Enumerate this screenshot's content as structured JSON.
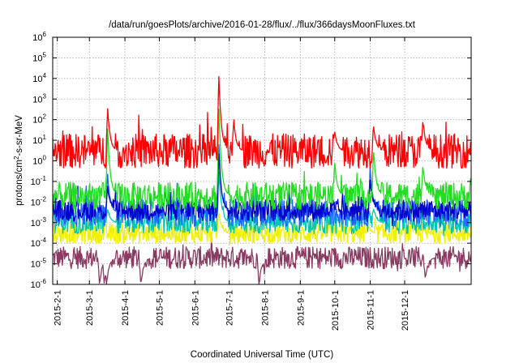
{
  "chart_data": {
    "type": "line",
    "title": "/data/run/goesPlots/archive/2016-01-28/flux/../flux/366daysMoonFluxes.txt",
    "xlabel": "Coordinated Universal Time (UTC)",
    "ylabel": "protons/cm2-s-sr-MeV",
    "ylabel_parts": {
      "pre": "protons/cm",
      "sup": "2",
      "post": "-s-sr-MeV"
    },
    "y_scale": "log",
    "ylim": [
      1e-06,
      1000000.0
    ],
    "xlim": [
      "2015-01-28",
      "2016-01-28"
    ],
    "grid": true,
    "y_ticks": [
      {
        "base": "10",
        "exp": "-6"
      },
      {
        "base": "10",
        "exp": "-5"
      },
      {
        "base": "10",
        "exp": "-4"
      },
      {
        "base": "10",
        "exp": "-3"
      },
      {
        "base": "10",
        "exp": "-2"
      },
      {
        "base": "10",
        "exp": "-1"
      },
      {
        "base": "10",
        "exp": "0"
      },
      {
        "base": "10",
        "exp": "1"
      },
      {
        "base": "10",
        "exp": "2"
      },
      {
        "base": "10",
        "exp": "3"
      },
      {
        "base": "10",
        "exp": "4"
      },
      {
        "base": "10",
        "exp": "5"
      },
      {
        "base": "10",
        "exp": "6"
      }
    ],
    "x_ticks": [
      {
        "date": "2015-02-01",
        "label": "2015-2-1"
      },
      {
        "date": "2015-03-01",
        "label": "2015-3-1"
      },
      {
        "date": "2015-04-01",
        "label": "2015-4-1"
      },
      {
        "date": "2015-05-01",
        "label": "2015-5-1"
      },
      {
        "date": "2015-06-01",
        "label": "2015-6-1"
      },
      {
        "date": "2015-07-01",
        "label": "2015-7-1"
      },
      {
        "date": "2015-08-01",
        "label": "2015-8-1"
      },
      {
        "date": "2015-09-01",
        "label": "2015-9-1"
      },
      {
        "date": "2015-10-01",
        "label": "2015-10-1"
      },
      {
        "date": "2015-11-01",
        "label": "2015-11-1"
      },
      {
        "date": "2015-12-01",
        "label": "2015-12-1"
      }
    ],
    "series": [
      {
        "color": "#8b3a62",
        "base": 2e-05,
        "noise": 0.18,
        "events": [
          {
            "date": "2015-03-10",
            "peak": 1e-06
          },
          {
            "date": "2015-03-14",
            "peak": 1e-06
          },
          {
            "date": "2015-03-16",
            "peak": 1e-06
          },
          {
            "date": "2015-04-15",
            "peak": 1e-06
          },
          {
            "date": "2015-07-27",
            "peak": 1e-06
          },
          {
            "date": "2015-12-19",
            "peak": 2e-06
          }
        ]
      },
      {
        "color": "#f0f000",
        "base": 0.0003,
        "noise": 0.16,
        "events": [
          {
            "date": "2015-06-22",
            "peak": 0.003
          },
          {
            "date": "2015-10-30",
            "peak": 0.0008
          }
        ]
      },
      {
        "color": "#00c8b0",
        "base": 0.001,
        "noise": 0.18,
        "events": [
          {
            "date": "2015-06-22",
            "peak": 0.3
          },
          {
            "date": "2015-03-17",
            "peak": 0.005
          },
          {
            "date": "2015-11-04",
            "peak": 0.005
          }
        ]
      },
      {
        "color": "#1e64ff",
        "base": 0.003,
        "noise": 0.22,
        "events": [
          {
            "date": "2015-06-22",
            "peak": 5
          },
          {
            "date": "2015-03-17",
            "peak": 0.2
          },
          {
            "date": "2015-05-06",
            "peak": 0.03
          },
          {
            "date": "2015-11-01",
            "peak": 0.5
          }
        ]
      },
      {
        "color": "#0000cc",
        "base": 0.004,
        "noise": 0.18,
        "events": [
          {
            "date": "2015-06-22",
            "peak": 2
          },
          {
            "date": "2015-03-17",
            "peak": 0.05
          },
          {
            "date": "2015-11-01",
            "peak": 0.1
          }
        ]
      },
      {
        "color": "#22dd22",
        "base": 0.02,
        "noise": 0.22,
        "events": [
          {
            "date": "2015-06-22",
            "peak": 300
          },
          {
            "date": "2015-03-17",
            "peak": 30
          },
          {
            "date": "2015-11-04",
            "peak": 3
          },
          {
            "date": "2015-10-01",
            "peak": 0.8
          },
          {
            "date": "2015-12-17",
            "peak": 0.5
          }
        ]
      },
      {
        "color": "#ff0000",
        "base": 3,
        "noise": 0.28,
        "events": [
          {
            "date": "2015-06-22",
            "peak": 10000.0
          },
          {
            "date": "2015-03-17",
            "peak": 300
          },
          {
            "date": "2015-11-04",
            "peak": 50
          },
          {
            "date": "2015-10-01",
            "peak": 30
          },
          {
            "date": "2015-12-17",
            "peak": 100
          },
          {
            "date": "2015-07-05",
            "peak": 80
          }
        ]
      }
    ]
  }
}
